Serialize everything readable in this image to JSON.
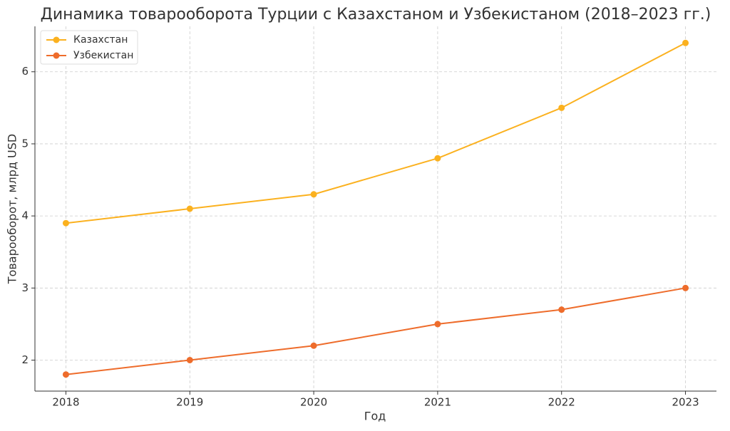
{
  "chart_data": {
    "type": "line",
    "title": "Динамика товарооборота Турции с Казахстаном и Узбекистаном (2018–2023 гг.)",
    "x_label": "Год",
    "y_label": "Товарооборот, млрд USD",
    "x": [
      2018,
      2019,
      2020,
      2021,
      2022,
      2023
    ],
    "series": [
      {
        "name": "Казахстан",
        "color": "#fbb11f",
        "values": [
          3.9,
          4.1,
          4.3,
          4.8,
          5.5,
          6.4
        ]
      },
      {
        "name": "Узбекистан",
        "color": "#ee6c2b",
        "values": [
          1.8,
          2.0,
          2.2,
          2.5,
          2.7,
          3.0
        ]
      }
    ],
    "xlim": [
      2017.75,
      2023.25
    ],
    "xticks": [
      2018,
      2019,
      2020,
      2021,
      2022,
      2023
    ],
    "ylim": [
      1.57,
      6.63
    ],
    "yticks": [
      2,
      3,
      4,
      5,
      6
    ],
    "grid": true,
    "legend": "upper left"
  }
}
